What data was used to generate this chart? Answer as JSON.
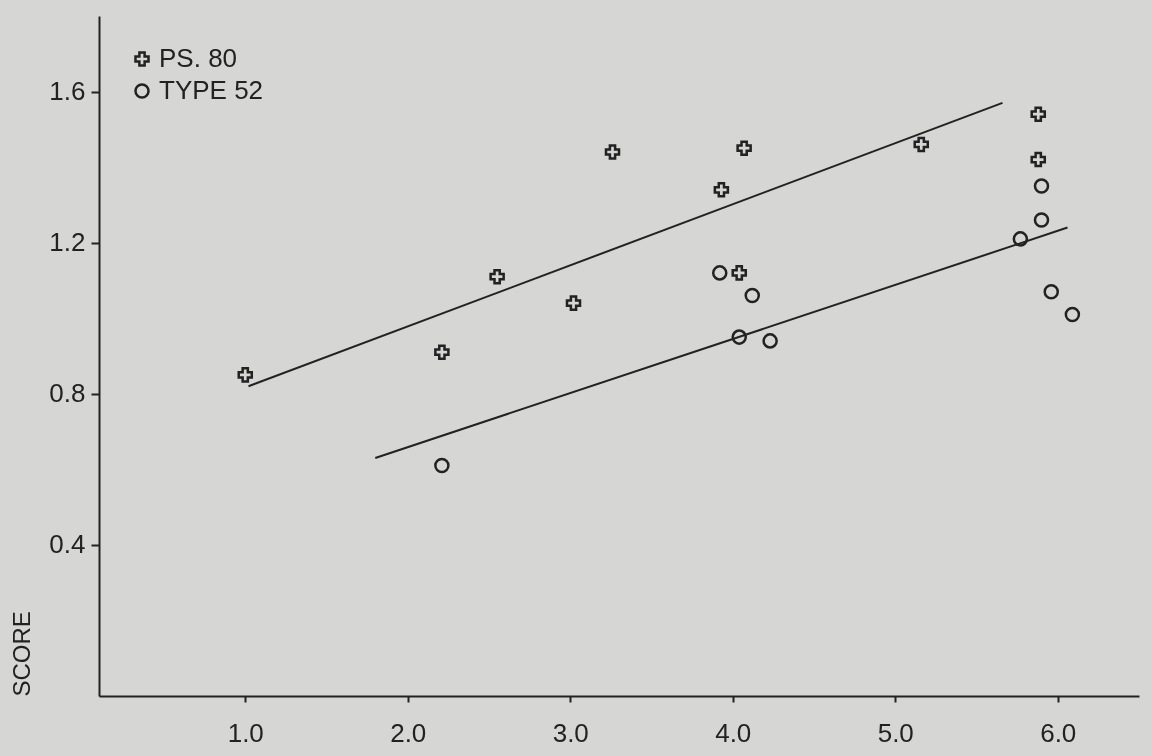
{
  "chart_data": {
    "type": "scatter",
    "ylabel": "SCORE",
    "xlim": [
      0.1,
      6.5
    ],
    "ylim": [
      0,
      1.8
    ],
    "xticks": [
      {
        "value": 1,
        "label": "1.0"
      },
      {
        "value": 2,
        "label": "2.0"
      },
      {
        "value": 3,
        "label": "3.0"
      },
      {
        "value": 4,
        "label": "4.0"
      },
      {
        "value": 5,
        "label": "5.0"
      },
      {
        "value": 6,
        "label": "6.0"
      }
    ],
    "yticks": [
      0.4,
      0.8,
      1.2,
      1.6
    ],
    "grid": false,
    "legend": "top left",
    "series": [
      {
        "name": "PS. 80",
        "color": "#222222",
        "marker": "cross",
        "x": [
          1.0,
          2.21,
          2.55,
          3.02,
          3.26,
          3.93,
          4.04,
          4.07,
          5.16,
          5.88,
          5.88
        ],
        "values": [
          0.85,
          0.91,
          1.11,
          1.04,
          1.44,
          1.34,
          1.12,
          1.45,
          1.46,
          1.54,
          1.42
        ]
      },
      {
        "name": "TYPE 52",
        "color": "#222222",
        "marker": "circle",
        "x": [
          2.21,
          3.92,
          4.04,
          4.12,
          4.23,
          5.77,
          5.9,
          5.9,
          5.96,
          6.09
        ],
        "values": [
          0.61,
          1.12,
          0.95,
          1.06,
          0.94,
          1.21,
          1.26,
          1.35,
          1.07,
          1.01
        ]
      },
      {
        "type": "line",
        "color": "#222222",
        "x": [
          1.02,
          5.66
        ],
        "values": [
          0.82,
          1.57
        ]
      },
      {
        "type": "line",
        "color": "#222222",
        "x": [
          1.8,
          6.06
        ],
        "values": [
          0.63,
          1.24
        ]
      }
    ]
  }
}
